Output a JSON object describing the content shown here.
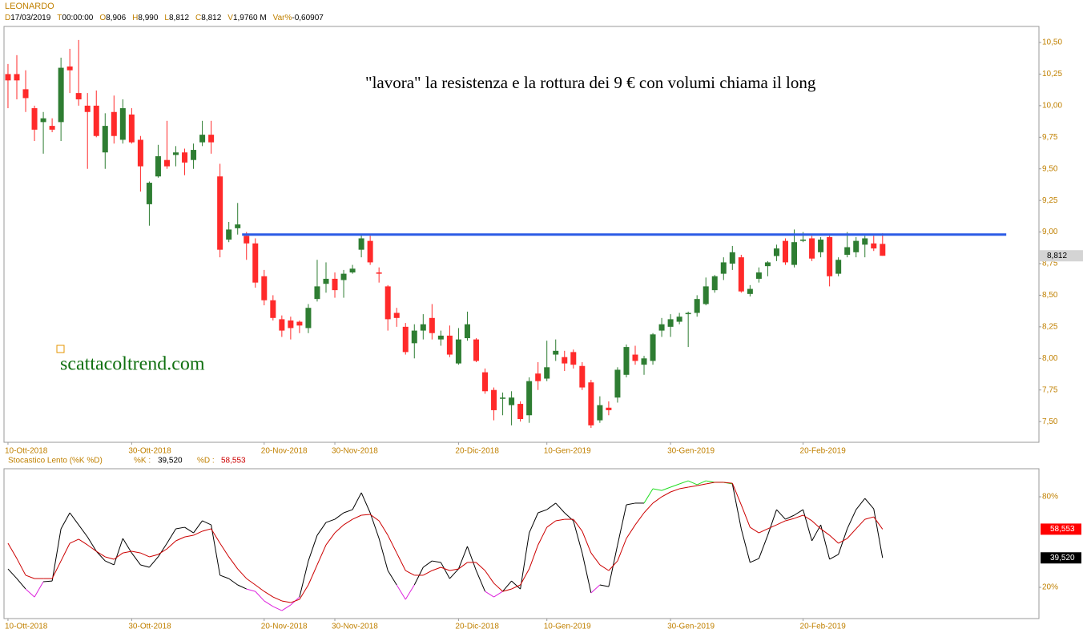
{
  "header": {
    "symbol": "LEONARDO",
    "fields": [
      {
        "key": "D",
        "value": "17/03/2019"
      },
      {
        "key": "T",
        "value": "00:00:00"
      },
      {
        "key": "O",
        "value": "8,906"
      },
      {
        "key": "H",
        "value": "8,990"
      },
      {
        "key": "L",
        "value": "8,812"
      },
      {
        "key": "C",
        "value": "8,812"
      },
      {
        "key": "V",
        "value": "1,9760 M"
      },
      {
        "key": "Var%",
        "value": "-0,60907"
      }
    ]
  },
  "chart_data": [
    {
      "type": "candlestick",
      "annotations": [
        "\"lavora\" la resistenza e la rottura dei 9 € con volumi chiama il long",
        "scattacoltrend.com"
      ],
      "up_color": "#2e7d32",
      "down_color": "#ff2a2a",
      "open": [
        10.25,
        10.25,
        10.13,
        9.98,
        9.87,
        9.84,
        9.87,
        10.31,
        10.1,
        10.0,
        10.0,
        9.63,
        9.95,
        9.73,
        9.93,
        9.73,
        9.22,
        9.44,
        9.57,
        9.61,
        9.63,
        9.57,
        9.71,
        9.77,
        9.44,
        8.94,
        9.03,
        8.97,
        8.91,
        8.65,
        8.46,
        8.31,
        8.3,
        8.29,
        8.24,
        8.47,
        8.59,
        8.63,
        8.62,
        8.68,
        8.86,
        8.93,
        8.68,
        8.57,
        8.36,
        8.25,
        8.12,
        8.22,
        8.32,
        8.15,
        8.18,
        7.96,
        8.16,
        8.15,
        7.89,
        7.75,
        7.68,
        7.63,
        7.64,
        7.55,
        7.88,
        7.84,
        8.03,
        8.01,
        8.05,
        7.94,
        7.81,
        7.51,
        7.61,
        7.69,
        7.87,
        8.03,
        7.95,
        7.98,
        8.22,
        8.25,
        8.29,
        8.35,
        8.36,
        8.43,
        8.54,
        8.67,
        8.75,
        8.8,
        8.51,
        8.63,
        8.73,
        8.81,
        8.93,
        8.74,
        8.93,
        8.95,
        8.84,
        8.96,
        8.67,
        8.82,
        8.84,
        8.9,
        8.91,
        8.906
      ],
      "high": [
        10.33,
        10.4,
        10.28,
        10.0,
        9.95,
        9.9,
        10.38,
        10.45,
        10.52,
        10.1,
        10.12,
        9.94,
        10.08,
        10.05,
        9.98,
        9.76,
        9.4,
        9.69,
        9.88,
        9.68,
        9.66,
        9.7,
        9.88,
        9.88,
        9.54,
        9.08,
        9.23,
        9.0,
        8.95,
        8.7,
        8.5,
        8.34,
        8.33,
        8.3,
        8.43,
        8.78,
        8.76,
        8.68,
        8.7,
        8.74,
        8.98,
        8.97,
        8.72,
        8.58,
        8.4,
        8.28,
        8.27,
        8.35,
        8.43,
        8.22,
        8.26,
        8.24,
        8.37,
        8.16,
        7.92,
        7.77,
        7.73,
        7.74,
        7.66,
        7.85,
        7.97,
        8.14,
        8.15,
        8.06,
        8.07,
        7.97,
        7.83,
        7.7,
        7.66,
        7.93,
        8.11,
        8.1,
        8.02,
        8.2,
        8.32,
        8.35,
        8.36,
        8.37,
        8.5,
        8.64,
        8.66,
        8.8,
        8.89,
        8.82,
        8.58,
        8.72,
        8.77,
        8.9,
        8.95,
        9.02,
        9.0,
        8.97,
        8.96,
        8.97,
        8.8,
        9.0,
        8.96,
        8.97,
        8.97,
        8.99
      ],
      "low": [
        9.98,
        10.05,
        9.95,
        9.72,
        9.62,
        9.79,
        9.72,
        10.1,
        10.0,
        9.5,
        9.75,
        9.5,
        9.7,
        9.7,
        9.7,
        9.32,
        9.05,
        9.43,
        9.5,
        9.52,
        9.45,
        9.5,
        9.68,
        9.62,
        8.8,
        8.92,
        8.98,
        8.78,
        8.56,
        8.42,
        8.3,
        8.17,
        8.15,
        8.2,
        8.2,
        8.45,
        8.52,
        8.48,
        8.48,
        8.67,
        8.8,
        8.74,
        8.6,
        8.22,
        8.25,
        8.03,
        8.0,
        8.15,
        8.15,
        8.1,
        8.01,
        7.95,
        8.14,
        7.97,
        7.72,
        7.51,
        7.55,
        7.47,
        7.5,
        7.49,
        7.75,
        7.82,
        7.98,
        7.9,
        7.92,
        7.75,
        7.45,
        7.49,
        7.55,
        7.65,
        7.85,
        7.95,
        7.87,
        7.95,
        8.17,
        8.17,
        8.27,
        8.09,
        8.33,
        8.42,
        8.52,
        8.62,
        8.7,
        8.52,
        8.49,
        8.6,
        8.65,
        8.77,
        8.74,
        8.72,
        8.92,
        8.77,
        8.8,
        8.57,
        8.65,
        8.8,
        8.8,
        8.8,
        8.85,
        8.812
      ],
      "close": [
        10.2,
        10.2,
        10.06,
        9.81,
        9.9,
        9.81,
        10.3,
        10.28,
        10.05,
        9.95,
        9.76,
        9.84,
        9.76,
        9.98,
        9.71,
        9.52,
        9.39,
        9.6,
        9.52,
        9.63,
        9.55,
        9.65,
        9.77,
        9.71,
        8.86,
        9.02,
        9.06,
        8.91,
        8.6,
        8.46,
        8.32,
        8.22,
        8.24,
        8.26,
        8.4,
        8.57,
        8.63,
        8.54,
        8.67,
        8.71,
        8.95,
        8.76,
        8.67,
        8.31,
        8.32,
        8.05,
        8.22,
        8.27,
        8.2,
        8.18,
        8.03,
        8.15,
        8.27,
        7.98,
        7.74,
        7.59,
        7.69,
        7.69,
        7.52,
        7.82,
        7.82,
        7.93,
        8.06,
        7.96,
        7.95,
        7.77,
        7.47,
        7.63,
        7.59,
        7.91,
        8.09,
        7.98,
        8.0,
        8.19,
        8.27,
        8.31,
        8.33,
        8.36,
        8.47,
        8.57,
        8.65,
        8.76,
        8.84,
        8.53,
        8.55,
        8.68,
        8.76,
        8.87,
        8.76,
        8.92,
        8.94,
        8.79,
        8.94,
        8.65,
        8.78,
        8.88,
        8.93,
        8.95,
        8.87,
        8.812
      ],
      "resistance": {
        "value": 8.98,
        "start": 26.5,
        "end": 113,
        "color": "#2b5ce6"
      },
      "last_price": {
        "value": 8.812,
        "label": "8,812"
      },
      "xlim": [
        -0.45,
        116.7
      ],
      "xticks": [
        {
          "value": 0,
          "label": "10-Ott-2018"
        },
        {
          "value": 14,
          "label": "30-Ott-2018"
        },
        {
          "value": 29,
          "label": "20-Nov-2018"
        },
        {
          "value": 37,
          "label": "30-Nov-2018"
        },
        {
          "value": 51,
          "label": "20-Dic-2018"
        },
        {
          "value": 61,
          "label": "10-Gen-2019"
        },
        {
          "value": 75,
          "label": "30-Gen-2019"
        },
        {
          "value": 90,
          "label": "20-Feb-2019"
        }
      ],
      "ylim": [
        7.336,
        10.627
      ],
      "yticks": [
        {
          "value": 7.5,
          "label": "7,50"
        },
        {
          "value": 7.75,
          "label": "7,75"
        },
        {
          "value": 8.0,
          "label": "8,00"
        },
        {
          "value": 8.25,
          "label": "8,25"
        },
        {
          "value": 8.5,
          "label": "8,50"
        },
        {
          "value": 8.75,
          "label": "8,75"
        },
        {
          "value": 9.0,
          "label": "9,00"
        },
        {
          "value": 9.25,
          "label": "9,25"
        },
        {
          "value": 9.5,
          "label": "9,50"
        },
        {
          "value": 9.75,
          "label": "9,75"
        },
        {
          "value": 10.0,
          "label": "10,00"
        },
        {
          "value": 10.25,
          "label": "10,25"
        },
        {
          "value": 10.5,
          "label": "10,50"
        }
      ]
    },
    {
      "type": "line",
      "title": "Stocastico Lento (%K %D)",
      "series": [
        {
          "name": "%K :",
          "color": "#000000",
          "overbought_color": "#22dd22",
          "oversold_color": "#dd22dd",
          "last_label": "39,520",
          "label_color": "#000000",
          "values": [
            32.2,
            25.8,
            18.9,
            13.6,
            23.7,
            24.2,
            58.8,
            69.4,
            61.4,
            53.4,
            43.9,
            37.5,
            34.9,
            52.4,
            42.8,
            34.9,
            33.3,
            40.2,
            49.2,
            58.8,
            59.8,
            56.1,
            64.1,
            61.4,
            28.0,
            25.8,
            21.6,
            18.9,
            17.3,
            11.0,
            7.3,
            4.6,
            8.3,
            13.6,
            37.5,
            54.5,
            63.0,
            65.1,
            69.4,
            71.5,
            82.7,
            69.4,
            52.4,
            31.1,
            21.6,
            12.0,
            21.6,
            33.3,
            37.5,
            36.5,
            25.8,
            32.2,
            47.1,
            31.1,
            17.3,
            13.6,
            17.3,
            24.2,
            18.9,
            56.1,
            69.4,
            71.5,
            75.8,
            69.4,
            64.1,
            42.8,
            16.3,
            21.6,
            20.5,
            48.1,
            74.7,
            75.8,
            75.8,
            85.3,
            84.2,
            86.4,
            88.5,
            90.6,
            88.0,
            90.6,
            89.6,
            89.6,
            88.5,
            58.8,
            36.5,
            39.1,
            54.5,
            71.5,
            65.1,
            67.8,
            71.5,
            50.8,
            61.4,
            38.6,
            41.8,
            58.8,
            71.5,
            78.9,
            72.0,
            39.52
          ]
        },
        {
          "name": "%D :",
          "color": "#cc0000",
          "last_label": "58,553",
          "label_color": "#cc0000",
          "values": [
            49.2,
            39.1,
            28.0,
            25.8,
            25.8,
            25.8,
            37.5,
            49.2,
            51.9,
            48.1,
            43.9,
            40.2,
            38.6,
            42.8,
            43.9,
            42.8,
            40.2,
            41.8,
            45.5,
            50.8,
            53.4,
            54.5,
            57.2,
            58.8,
            49.2,
            40.2,
            32.2,
            25.8,
            21.6,
            17.3,
            13.6,
            11.0,
            9.9,
            12.0,
            21.6,
            34.9,
            48.1,
            56.1,
            61.4,
            65.1,
            67.8,
            68.3,
            64.1,
            54.5,
            42.8,
            31.1,
            28.0,
            28.0,
            31.1,
            33.3,
            31.1,
            32.2,
            36.5,
            36.5,
            31.1,
            22.7,
            17.3,
            18.9,
            21.6,
            32.2,
            48.1,
            59.8,
            64.1,
            65.1,
            65.1,
            57.2,
            42.8,
            34.9,
            31.1,
            37.5,
            52.4,
            61.4,
            69.4,
            75.8,
            80.0,
            83.2,
            85.3,
            86.4,
            87.4,
            88.5,
            89.6,
            89.6,
            89.0,
            74.7,
            59.8,
            56.1,
            58.8,
            61.4,
            64.1,
            65.7,
            67.8,
            64.1,
            58.8,
            54.5,
            49.2,
            52.4,
            58.8,
            65.1,
            66.7,
            58.553
          ]
        }
      ],
      "xlim": [
        -0.45,
        116.7
      ],
      "xticks": [
        {
          "value": 0,
          "label": "10-Ott-2018"
        },
        {
          "value": 14,
          "label": "30-Ott-2018"
        },
        {
          "value": 29,
          "label": "20-Nov-2018"
        },
        {
          "value": 37,
          "label": "30-Nov-2018"
        },
        {
          "value": 51,
          "label": "20-Dic-2018"
        },
        {
          "value": 61,
          "label": "10-Gen-2019"
        },
        {
          "value": 75,
          "label": "30-Gen-2019"
        },
        {
          "value": 90,
          "label": "20-Feb-2019"
        }
      ],
      "ylim": [
        -0.7,
        98.6
      ],
      "yticks": [
        {
          "value": 20,
          "label": "20%"
        },
        {
          "value": 80,
          "label": "80%"
        }
      ]
    }
  ]
}
